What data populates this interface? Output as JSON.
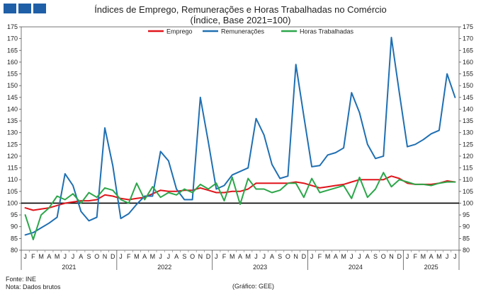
{
  "header": {
    "title": "Índices de Emprego, Remunerações e Horas Trabalhadas no Comércio",
    "subtitle": "(Índice, Base 2021=100)"
  },
  "footer": {
    "source": "Fonte: INE",
    "note": "Nota: Dados brutos",
    "credit": "(Gráfico: GEE)"
  },
  "chart_data": {
    "type": "line",
    "ylim": [
      80,
      175
    ],
    "yticks": [
      80,
      85,
      90,
      95,
      100,
      105,
      110,
      115,
      120,
      125,
      130,
      135,
      140,
      145,
      150,
      155,
      160,
      165,
      170,
      175
    ],
    "legend_position": "top-center",
    "grid": false,
    "reference_line": 100,
    "month_labels": [
      "J",
      "F",
      "M",
      "A",
      "M",
      "J",
      "J",
      "A",
      "S",
      "O",
      "N",
      "D",
      "J",
      "F",
      "M",
      "A",
      "M",
      "J",
      "J",
      "A",
      "S",
      "O",
      "N",
      "D",
      "J",
      "F",
      "M",
      "A",
      "M",
      "J",
      "J",
      "A",
      "S",
      "O",
      "N",
      "D",
      "J",
      "F",
      "M",
      "A",
      "M",
      "J",
      "J",
      "A",
      "S",
      "O",
      "N",
      "D",
      "J",
      "F",
      "M",
      "A",
      "M",
      "J",
      "J"
    ],
    "years": [
      {
        "label": "2021",
        "months": 12
      },
      {
        "label": "2022",
        "months": 12
      },
      {
        "label": "2023",
        "months": 12
      },
      {
        "label": "2024",
        "months": 12
      },
      {
        "label": "2025",
        "months": 7
      }
    ],
    "series": [
      {
        "name": "Emprego",
        "color": "#e0141b",
        "values": [
          98.0,
          97.0,
          97.5,
          98.0,
          99.0,
          100.0,
          100.5,
          101.0,
          101.0,
          101.5,
          103.5,
          103.0,
          102.0,
          101.5,
          102.0,
          102.5,
          104.0,
          105.5,
          105.0,
          105.0,
          105.5,
          105.5,
          106.5,
          105.5,
          104.5,
          104.5,
          105.0,
          105.0,
          106.0,
          108.5,
          108.5,
          108.5,
          108.5,
          108.5,
          109.0,
          108.5,
          107.5,
          106.5,
          107.0,
          107.5,
          108.0,
          109.0,
          110.0,
          110.0,
          110.0,
          110.0,
          111.5,
          110.5,
          108.5,
          108.0,
          108.0,
          108.0,
          108.5,
          109.5,
          109.0
        ]
      },
      {
        "name": "Remunerações",
        "color": "#1f6fb2",
        "values": [
          86.5,
          87.5,
          89.5,
          91.5,
          94.0,
          112.5,
          107.5,
          96.5,
          92.5,
          94.0,
          132.0,
          116.0,
          93.5,
          95.5,
          99.5,
          103.0,
          103.0,
          122.0,
          118.0,
          106.0,
          101.5,
          101.5,
          145.0,
          126.0,
          106.0,
          107.5,
          112.0,
          113.5,
          115.0,
          136.0,
          129.0,
          116.5,
          110.5,
          111.5,
          159.0,
          137.0,
          115.5,
          116.0,
          120.5,
          121.5,
          123.5,
          147.0,
          138.5,
          125.0,
          119.0,
          120.0,
          170.5,
          147.0,
          124.0,
          125.0,
          127.0,
          129.5,
          131.0,
          155.0,
          145.0
        ]
      },
      {
        "name": "Horas Trabalhadas",
        "color": "#2ca64a",
        "values": [
          95.0,
          84.5,
          95.0,
          98.0,
          103.0,
          101.5,
          104.0,
          100.0,
          104.5,
          102.5,
          106.5,
          105.5,
          101.5,
          100.0,
          108.5,
          101.5,
          107.0,
          102.5,
          104.5,
          103.5,
          106.0,
          104.5,
          108.0,
          106.0,
          108.5,
          101.0,
          111.0,
          99.5,
          110.5,
          106.0,
          106.0,
          104.5,
          105.5,
          108.5,
          108.5,
          102.5,
          110.5,
          104.5,
          105.5,
          106.5,
          107.5,
          102.0,
          111.0,
          102.5,
          106.0,
          113.0,
          107.0,
          110.0,
          109.0,
          108.0,
          108.0,
          107.5,
          108.5,
          109.0,
          109.0
        ]
      }
    ]
  }
}
